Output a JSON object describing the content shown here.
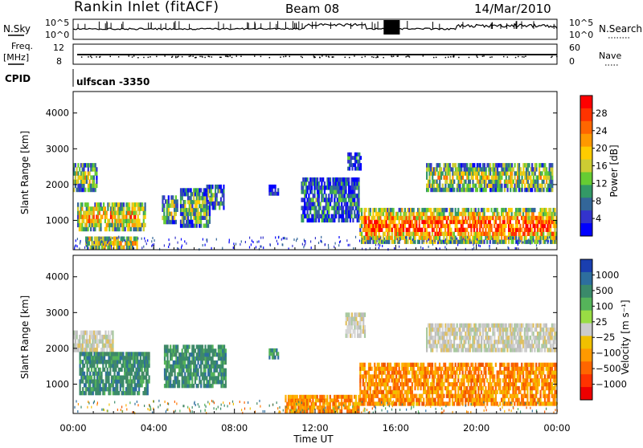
{
  "header": {
    "station": "Rankin Inlet (fitACF)",
    "beam": "Beam 08",
    "date": "14/Mar/2010"
  },
  "status_panels": {
    "left_labels": {
      "nsky": "N.Sky",
      "freq_line1": "Freq.",
      "freq_line2": "[MHz]",
      "cpid": "CPID"
    },
    "right_labels": {
      "nsearch": "N.Search",
      "nave": "Nave"
    },
    "noise_ticks_left": [
      "10^5",
      "10^0"
    ],
    "noise_ticks_right": [
      "10^5",
      "10^0"
    ],
    "freq_ticks_left": [
      "12",
      "8"
    ],
    "freq_ticks_right": [
      "60",
      "0"
    ],
    "cpid_text": "ulfscan -3350"
  },
  "chart_data": [
    {
      "type": "heatmap",
      "name": "power",
      "ylabel": "Slant Range [km]",
      "xlabel": "",
      "yticks": [
        "4000",
        "3000",
        "2000",
        "1000"
      ],
      "ylim": [
        180,
        4600
      ],
      "colorbar": {
        "title": "Power [dB]",
        "ticks": [
          "28",
          "24",
          "20",
          "16",
          "12",
          "8",
          "4"
        ],
        "colors": [
          "#ff0000",
          "#ff3300",
          "#ff6600",
          "#ff9900",
          "#ffcc00",
          "#cccc33",
          "#66cc33",
          "#339966",
          "#336699",
          "#3333cc",
          "#0000ff"
        ]
      },
      "regions": [
        {
          "t": [
            0.2,
            3.6
          ],
          "r": [
            700,
            1500
          ],
          "level": 0.75
        },
        {
          "t": [
            0.0,
            1.2
          ],
          "r": [
            1800,
            2600
          ],
          "level": 0.55
        },
        {
          "t": [
            4.4,
            5.2
          ],
          "r": [
            900,
            1700
          ],
          "level": 0.55
        },
        {
          "t": [
            5.3,
            6.8
          ],
          "r": [
            800,
            1900
          ],
          "level": 0.4
        },
        {
          "t": [
            6.6,
            7.5
          ],
          "r": [
            1300,
            2000
          ],
          "level": 0.35
        },
        {
          "t": [
            9.7,
            10.2
          ],
          "r": [
            1700,
            2000
          ],
          "level": 0.25
        },
        {
          "t": [
            11.3,
            14.2
          ],
          "r": [
            950,
            2200
          ],
          "level": 0.2
        },
        {
          "t": [
            13.6,
            14.3
          ],
          "r": [
            2400,
            2900
          ],
          "level": 0.2
        },
        {
          "t": [
            14.2,
            24.0
          ],
          "r": [
            350,
            1350
          ],
          "level": 0.85
        },
        {
          "t": [
            17.5,
            23.8
          ],
          "r": [
            1800,
            2600
          ],
          "level": 0.55
        },
        {
          "t": [
            0.6,
            3.2
          ],
          "r": [
            180,
            550
          ],
          "level": 0.9
        }
      ]
    },
    {
      "type": "heatmap",
      "name": "velocity",
      "ylabel": "Slant Range [km]",
      "xlabel": "Time UT",
      "yticks": [
        "4000",
        "3000",
        "2000",
        "1000"
      ],
      "ylim": [
        180,
        4600
      ],
      "xticks": [
        "00:00",
        "04:00",
        "08:00",
        "12:00",
        "16:00",
        "20:00",
        "00:00"
      ],
      "colorbar": {
        "title": "Velocity [m s⁻¹]",
        "ticks": [
          "1000",
          "500",
          "100",
          "25",
          "−25",
          "−100",
          "−500",
          "−1000"
        ],
        "colors": [
          "#1a3fb0",
          "#2d6e9e",
          "#3a8a6a",
          "#55b45a",
          "#99dd44",
          "#cccccc",
          "#f0c000",
          "#ff9900",
          "#ff6600",
          "#ff3300",
          "#ee0000"
        ]
      },
      "regions": [
        {
          "t": [
            0.0,
            2.0
          ],
          "r": [
            1900,
            2500
          ],
          "v": "gray"
        },
        {
          "t": [
            0.3,
            3.8
          ],
          "r": [
            700,
            1900
          ],
          "v": "green"
        },
        {
          "t": [
            4.5,
            7.6
          ],
          "r": [
            900,
            2100
          ],
          "v": "green"
        },
        {
          "t": [
            9.7,
            10.2
          ],
          "r": [
            1700,
            2000
          ],
          "v": "green"
        },
        {
          "t": [
            10.5,
            14.2
          ],
          "r": [
            200,
            700
          ],
          "v": "orange"
        },
        {
          "t": [
            14.2,
            24.0
          ],
          "r": [
            400,
            1600
          ],
          "v": "orange"
        },
        {
          "t": [
            17.5,
            24.0
          ],
          "r": [
            1900,
            2700
          ],
          "v": "gray"
        },
        {
          "t": [
            13.5,
            14.5
          ],
          "r": [
            2300,
            3000
          ],
          "v": "gray"
        }
      ]
    }
  ]
}
